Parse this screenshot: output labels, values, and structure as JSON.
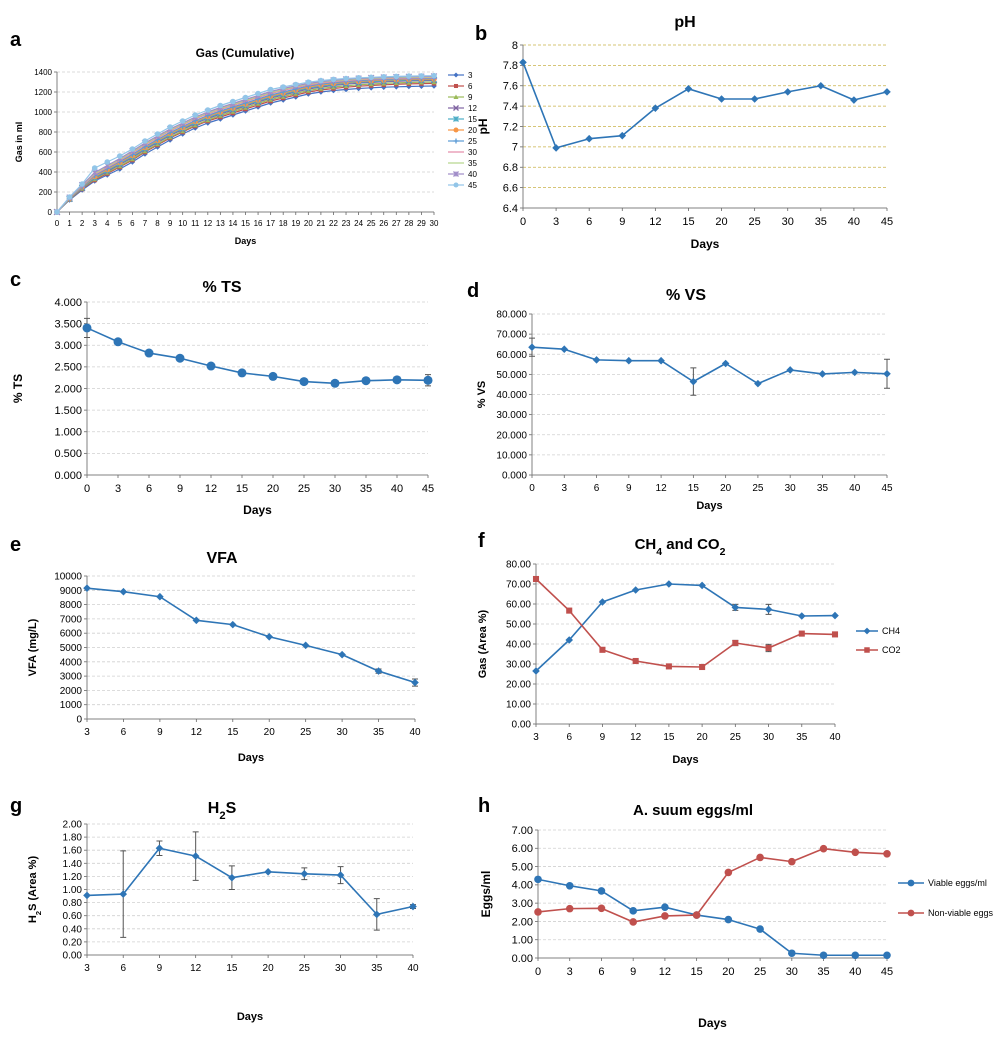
{
  "panel_letters": [
    "a",
    "b",
    "c",
    "d",
    "e",
    "f",
    "g",
    "h"
  ],
  "chart_data": [
    {
      "id": "a",
      "type": "line",
      "title": "Gas (Cumulative)",
      "xlabel": "Days",
      "ylabel": "Gas in ml",
      "x": [
        0,
        1,
        2,
        3,
        4,
        5,
        6,
        7,
        8,
        9,
        10,
        11,
        12,
        13,
        14,
        15,
        16,
        17,
        18,
        19,
        20,
        21,
        22,
        23,
        24,
        25,
        26,
        27,
        28,
        29,
        30
      ],
      "ylim": [
        0,
        1400
      ],
      "yticks": [
        "0",
        "200",
        "400",
        "600",
        "800",
        "1000",
        "1200",
        "1400"
      ],
      "grid": true,
      "legend": "right",
      "series": [
        {
          "name": "3",
          "color": "#4472c4",
          "marker": "diamond",
          "values": [
            0,
            120,
            220,
            310,
            370,
            430,
            500,
            580,
            650,
            720,
            780,
            840,
            890,
            930,
            970,
            1010,
            1050,
            1090,
            1120,
            1150,
            1180,
            1200,
            1215,
            1225,
            1235,
            1242,
            1248,
            1252,
            1255,
            1258,
            1260
          ]
        },
        {
          "name": "6",
          "color": "#c0504d",
          "marker": "square",
          "values": [
            0,
            125,
            230,
            320,
            385,
            450,
            520,
            600,
            670,
            740,
            800,
            860,
            910,
            950,
            990,
            1030,
            1070,
            1110,
            1140,
            1170,
            1200,
            1220,
            1235,
            1248,
            1258,
            1265,
            1272,
            1277,
            1281,
            1284,
            1286
          ]
        },
        {
          "name": "9",
          "color": "#9bbb59",
          "marker": "triangle",
          "values": [
            0,
            127,
            235,
            330,
            395,
            460,
            530,
            610,
            680,
            750,
            810,
            870,
            920,
            965,
            1005,
            1045,
            1085,
            1125,
            1155,
            1185,
            1215,
            1235,
            1250,
            1262,
            1272,
            1280,
            1286,
            1291,
            1295,
            1298,
            1300
          ]
        },
        {
          "name": "12",
          "color": "#8064a2",
          "marker": "x",
          "values": [
            0,
            130,
            240,
            340,
            405,
            475,
            545,
            625,
            695,
            765,
            825,
            885,
            935,
            980,
            1020,
            1060,
            1100,
            1140,
            1170,
            1200,
            1230,
            1250,
            1265,
            1278,
            1288,
            1296,
            1302,
            1307,
            1311,
            1314,
            1316
          ]
        },
        {
          "name": "15",
          "color": "#4bacc6",
          "marker": "star",
          "values": [
            0,
            132,
            245,
            345,
            415,
            485,
            555,
            635,
            705,
            775,
            835,
            895,
            945,
            990,
            1030,
            1070,
            1110,
            1150,
            1180,
            1210,
            1240,
            1260,
            1275,
            1288,
            1298,
            1305,
            1311,
            1316,
            1320,
            1322,
            1324
          ]
        },
        {
          "name": "20",
          "color": "#f79646",
          "marker": "circle",
          "values": [
            0,
            135,
            250,
            355,
            425,
            495,
            565,
            645,
            715,
            785,
            845,
            905,
            955,
            1000,
            1040,
            1080,
            1120,
            1160,
            1190,
            1220,
            1250,
            1270,
            1285,
            1297,
            1306,
            1313,
            1319,
            1323,
            1326,
            1328,
            1330
          ]
        },
        {
          "name": "25",
          "color": "#5b9bd5",
          "marker": "plus",
          "values": [
            0,
            138,
            255,
            365,
            435,
            505,
            575,
            655,
            725,
            795,
            855,
            915,
            965,
            1010,
            1050,
            1090,
            1130,
            1170,
            1200,
            1230,
            1260,
            1280,
            1294,
            1305,
            1314,
            1321,
            1326,
            1330,
            1333,
            1335,
            1337
          ]
        },
        {
          "name": "30",
          "color": "#e48aa8",
          "marker": "none",
          "values": [
            0,
            140,
            260,
            375,
            445,
            515,
            590,
            670,
            740,
            810,
            870,
            930,
            980,
            1025,
            1065,
            1105,
            1145,
            1185,
            1215,
            1245,
            1270,
            1290,
            1304,
            1314,
            1322,
            1328,
            1333,
            1337,
            1340,
            1342,
            1344
          ]
        },
        {
          "name": "35",
          "color": "#b5d48a",
          "marker": "none",
          "values": [
            0,
            142,
            265,
            385,
            455,
            525,
            600,
            680,
            750,
            820,
            880,
            940,
            990,
            1035,
            1075,
            1115,
            1155,
            1195,
            1225,
            1255,
            1280,
            1298,
            1311,
            1321,
            1329,
            1335,
            1340,
            1344,
            1347,
            1349,
            1350
          ]
        },
        {
          "name": "40",
          "color": "#a08cc8",
          "marker": "star",
          "values": [
            0,
            145,
            270,
            395,
            465,
            535,
            610,
            690,
            760,
            830,
            890,
            950,
            1000,
            1045,
            1085,
            1125,
            1165,
            1205,
            1235,
            1262,
            1286,
            1304,
            1317,
            1327,
            1335,
            1341,
            1346,
            1350,
            1353,
            1355,
            1357
          ]
        },
        {
          "name": "45",
          "color": "#92c5e8",
          "marker": "circle",
          "values": [
            0,
            150,
            280,
            440,
            500,
            560,
            630,
            710,
            780,
            850,
            910,
            970,
            1020,
            1065,
            1105,
            1145,
            1185,
            1225,
            1250,
            1275,
            1298,
            1314,
            1326,
            1335,
            1342,
            1347,
            1352,
            1356,
            1359,
            1361,
            1363
          ]
        }
      ]
    },
    {
      "id": "b",
      "type": "line",
      "title": "pH",
      "xlabel": "Days",
      "ylabel": "pH",
      "categories": [
        "0",
        "3",
        "6",
        "9",
        "12",
        "15",
        "20",
        "25",
        "30",
        "35",
        "40",
        "45"
      ],
      "ylim": [
        6.4,
        8
      ],
      "yticks": [
        "6.4",
        "6.6",
        "6.8",
        "7",
        "7.2",
        "7.4",
        "7.6",
        "7.8",
        "8"
      ],
      "grid": true,
      "series": [
        {
          "name": "pH",
          "color": "#2e75b6",
          "marker": "diamond",
          "values": [
            7.83,
            6.99,
            7.08,
            7.11,
            7.38,
            7.57,
            7.47,
            7.47,
            7.54,
            7.6,
            7.46,
            7.54
          ]
        }
      ]
    },
    {
      "id": "c",
      "type": "line",
      "title": "% TS",
      "xlabel": "Days",
      "ylabel": "% TS",
      "categories": [
        "0",
        "3",
        "6",
        "9",
        "12",
        "15",
        "20",
        "25",
        "30",
        "35",
        "40",
        "45"
      ],
      "ylim": [
        0,
        4
      ],
      "yticks": [
        "0.000",
        "0.500",
        "1.000",
        "1.500",
        "2.000",
        "2.500",
        "3.000",
        "3.500",
        "4.000"
      ],
      "grid": true,
      "series": [
        {
          "name": "% TS",
          "color": "#2e75b6",
          "marker": "circle",
          "values": [
            3.4,
            3.08,
            2.82,
            2.7,
            2.52,
            2.36,
            2.28,
            2.16,
            2.12,
            2.18,
            2.2,
            2.19
          ],
          "errors": [
            0.22,
            0,
            0,
            0,
            0,
            0,
            0,
            0,
            0,
            0,
            0,
            0.13
          ]
        }
      ]
    },
    {
      "id": "d",
      "type": "line",
      "title": "% VS",
      "xlabel": "Days",
      "ylabel": "% VS",
      "categories": [
        "0",
        "3",
        "6",
        "9",
        "12",
        "15",
        "20",
        "25",
        "30",
        "35",
        "40",
        "45"
      ],
      "ylim": [
        0,
        80
      ],
      "yticks": [
        "0.000",
        "10.000",
        "20.000",
        "30.000",
        "40.000",
        "50.000",
        "60.000",
        "70.000",
        "80.000"
      ],
      "grid": true,
      "series": [
        {
          "name": "% VS",
          "color": "#2e75b6",
          "marker": "diamond",
          "values": [
            63.5,
            62.5,
            57.2,
            56.8,
            56.8,
            46.4,
            55.4,
            45.4,
            52.2,
            50.2,
            51,
            50.3
          ],
          "errors": [
            4.5,
            0,
            0,
            0,
            0,
            6.8,
            0,
            0,
            0,
            0,
            0,
            7.2
          ]
        }
      ]
    },
    {
      "id": "e",
      "type": "line",
      "title": "VFA",
      "xlabel": "Days",
      "ylabel": "VFA (mg/L)",
      "categories": [
        "3",
        "6",
        "9",
        "12",
        "15",
        "20",
        "25",
        "30",
        "35",
        "40"
      ],
      "ylim": [
        0,
        10000
      ],
      "yticks": [
        "0",
        "1000",
        "2000",
        "3000",
        "4000",
        "5000",
        "6000",
        "7000",
        "8000",
        "9000",
        "10000"
      ],
      "grid": true,
      "series": [
        {
          "name": "VFA",
          "color": "#2e75b6",
          "marker": "diamond",
          "values": [
            9150,
            8900,
            8550,
            6900,
            6600,
            5750,
            5150,
            4500,
            3350,
            2550
          ],
          "errors": [
            0,
            0,
            0,
            0,
            0,
            0,
            0,
            0,
            150,
            250
          ]
        }
      ]
    },
    {
      "id": "f",
      "type": "line",
      "title": "CH4 and CO2",
      "xlabel": "Days",
      "ylabel": "Gas (Area %)",
      "categories": [
        "3",
        "6",
        "9",
        "12",
        "15",
        "20",
        "25",
        "30",
        "35",
        "40"
      ],
      "ylim": [
        0,
        80
      ],
      "yticks": [
        "0.00",
        "10.00",
        "20.00",
        "30.00",
        "40.00",
        "50.00",
        "60.00",
        "70.00",
        "80.00"
      ],
      "grid": true,
      "legend": "right",
      "series": [
        {
          "name": "CH4",
          "color": "#2e75b6",
          "marker": "diamond",
          "values": [
            26.5,
            42,
            61,
            67,
            70,
            69.3,
            58.3,
            57.3,
            54,
            54.2
          ],
          "errors": [
            0,
            0,
            0,
            0,
            0,
            0,
            1.5,
            2.5,
            0,
            0
          ]
        },
        {
          "name": "CO2",
          "color": "#c0504d",
          "marker": "square",
          "values": [
            72.5,
            56.7,
            37.1,
            31.5,
            28.8,
            28.5,
            40.5,
            38,
            45.2,
            44.8
          ],
          "errors": [
            0,
            0,
            0,
            0,
            0,
            0,
            1.3,
            1.8,
            0,
            0
          ]
        }
      ]
    },
    {
      "id": "g",
      "type": "line",
      "title": "H2S",
      "xlabel": "Days",
      "ylabel": "H2S (Area %)",
      "categories": [
        "3",
        "6",
        "9",
        "12",
        "15",
        "20",
        "25",
        "30",
        "35",
        "40"
      ],
      "ylim": [
        0,
        2
      ],
      "yticks": [
        "0.00",
        "0.20",
        "0.40",
        "0.60",
        "0.80",
        "1.00",
        "1.20",
        "1.40",
        "1.60",
        "1.80",
        "2.00"
      ],
      "grid": true,
      "series": [
        {
          "name": "H2S",
          "color": "#2e75b6",
          "marker": "diamond",
          "values": [
            0.91,
            0.93,
            1.63,
            1.51,
            1.18,
            1.27,
            1.24,
            1.22,
            0.62,
            0.74
          ],
          "errors": [
            0,
            0.66,
            0.11,
            0.37,
            0.18,
            0,
            0.09,
            0.13,
            0.24,
            0.03
          ]
        }
      ]
    },
    {
      "id": "h",
      "type": "line",
      "title": "A. suum eggs/ml",
      "xlabel": "Days",
      "ylabel": "Eggs/ml",
      "categories": [
        "0",
        "3",
        "6",
        "9",
        "12",
        "15",
        "20",
        "25",
        "30",
        "35",
        "40",
        "45"
      ],
      "ylim": [
        0,
        7
      ],
      "yticks": [
        "0.00",
        "1.00",
        "2.00",
        "3.00",
        "4.00",
        "5.00",
        "6.00",
        "7.00"
      ],
      "grid": true,
      "legend": "right",
      "series": [
        {
          "name": "Viable eggs/ml",
          "color": "#2e75b6",
          "marker": "circle",
          "values": [
            4.3,
            3.95,
            3.67,
            2.58,
            2.78,
            2.35,
            2.1,
            1.58,
            0.26,
            0.15,
            0.15,
            0.15
          ]
        },
        {
          "name": "Non-viable eggs",
          "color": "#c0504d",
          "marker": "circle",
          "values": [
            2.52,
            2.7,
            2.72,
            1.97,
            2.3,
            2.35,
            4.68,
            5.5,
            5.27,
            5.98,
            5.78,
            5.7
          ]
        }
      ]
    }
  ]
}
